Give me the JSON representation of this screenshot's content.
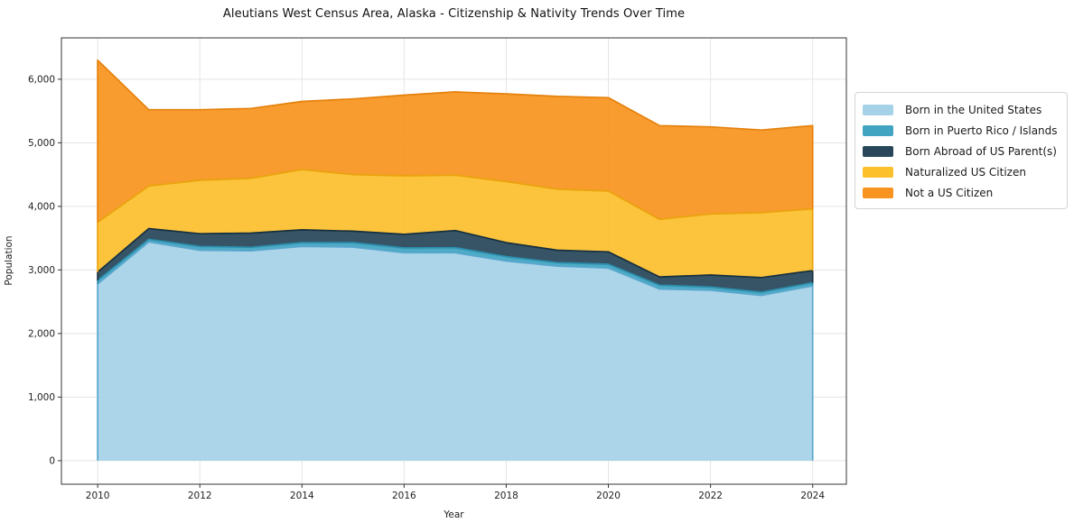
{
  "title": "Aleutians West Census Area, Alaska - Citizenship & Nativity Trends Over Time",
  "chart_data": {
    "type": "area",
    "stacked": true,
    "title": "Aleutians West Census Area, Alaska - Citizenship & Nativity Trends Over Time",
    "xlabel": "Year",
    "ylabel": "Population",
    "grid": true,
    "legend_position": "right",
    "x": [
      2010,
      2011,
      2012,
      2013,
      2014,
      2015,
      2016,
      2017,
      2018,
      2019,
      2020,
      2021,
      2022,
      2023,
      2024
    ],
    "xlim": [
      2009.29,
      2024.66
    ],
    "ylim": [
      -370,
      6650
    ],
    "x_tick_values": [
      2010,
      2012,
      2014,
      2016,
      2018,
      2020,
      2022,
      2024
    ],
    "x_tick_labels": [
      "2010",
      "2012",
      "2014",
      "2016",
      "2018",
      "2020",
      "2022",
      "2024"
    ],
    "y_tick_values": [
      0,
      1000,
      2000,
      3000,
      4000,
      5000,
      6000
    ],
    "y_tick_labels": [
      "0",
      "1,000",
      "2,000",
      "3,000",
      "4,000",
      "5,000",
      "6,000"
    ],
    "series": [
      {
        "name": "Born in the United States",
        "color": "#a6d2e7",
        "edge": "#58a7cd",
        "values": [
          2780,
          3440,
          3310,
          3300,
          3370,
          3360,
          3270,
          3270,
          3140,
          3060,
          3030,
          2700,
          2680,
          2600,
          2750
        ]
      },
      {
        "name": "Born in Puerto Rico / Islands",
        "color": "#41a5c2",
        "edge": "#2b8fae",
        "values": [
          55,
          40,
          60,
          55,
          60,
          70,
          75,
          80,
          70,
          55,
          60,
          60,
          50,
          50,
          50
        ]
      },
      {
        "name": "Born Abroad of US Parent(s)",
        "color": "#28475a",
        "edge": "#16303f",
        "values": [
          130,
          170,
          200,
          225,
          200,
          180,
          215,
          270,
          220,
          195,
          195,
          130,
          190,
          230,
          190
        ]
      },
      {
        "name": "Naturalized US Citizen",
        "color": "#fcc02d",
        "edge": "#e9a30c",
        "values": [
          785,
          670,
          840,
          860,
          950,
          890,
          920,
          870,
          960,
          960,
          955,
          905,
          960,
          1020,
          970
        ]
      },
      {
        "name": "Not a US Citizen",
        "color": "#f8941f",
        "edge": "#e5810c",
        "values": [
          2550,
          1200,
          1110,
          1100,
          1070,
          1190,
          1270,
          1310,
          1380,
          1460,
          1470,
          1475,
          1370,
          1300,
          1310
        ]
      }
    ],
    "totals": [
      6300,
      5520,
      5520,
      5540,
      5650,
      5690,
      5750,
      5800,
      5770,
      5730,
      5710,
      5270,
      5250,
      5200,
      5270
    ]
  },
  "style": {
    "grid_color": "#e5e5e5",
    "spine_color": "#333333",
    "tick_label_color": "#222222",
    "background": "#ffffff",
    "area_opacity": 0.93
  }
}
